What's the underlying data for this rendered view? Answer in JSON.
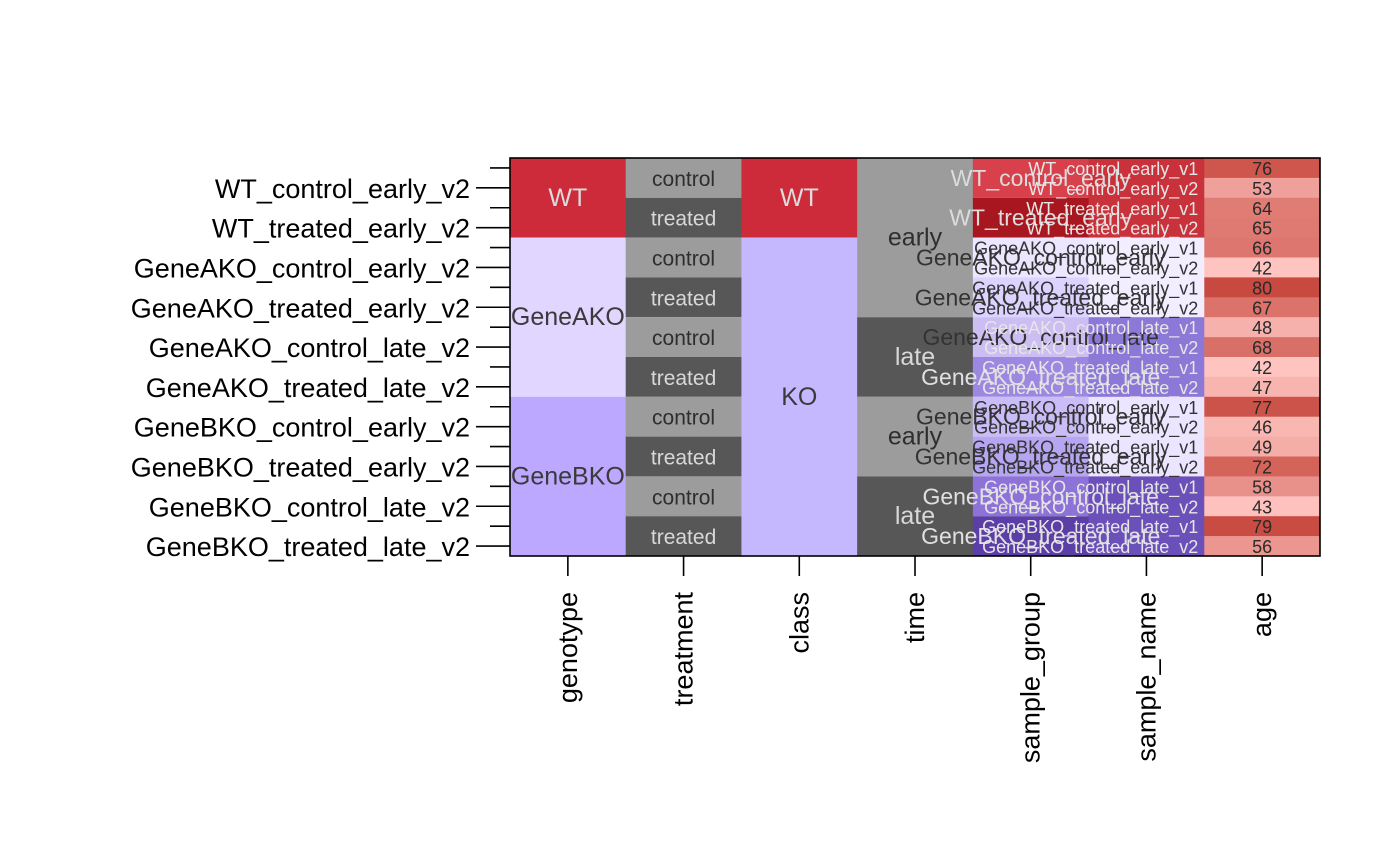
{
  "chart_data": {
    "type": "heatmap",
    "row_labels": [
      "WT_control_early_v2",
      "WT_treated_early_v2",
      "GeneAKO_control_early_v2",
      "GeneAKO_treated_early_v2",
      "GeneAKO_control_late_v2",
      "GeneAKO_treated_late_v2",
      "GeneBKO_control_early_v2",
      "GeneBKO_treated_early_v2",
      "GeneBKO_control_late_v2",
      "GeneBKO_treated_late_v2"
    ],
    "columns": [
      {
        "name": "genotype",
        "blocks": [
          {
            "label": "WT",
            "from": 0,
            "to": 4,
            "color": "#cd2b3a",
            "text_color": "#dcdcdc"
          },
          {
            "label": "GeneAKO",
            "from": 4,
            "to": 12,
            "color": "#e0d6ff",
            "text_color": "#3a3a3a"
          },
          {
            "label": "GeneBKO",
            "from": 12,
            "to": 20,
            "color": "#bca8ff",
            "text_color": "#3a3a3a"
          }
        ]
      },
      {
        "name": "treatment",
        "blocks": [
          {
            "label": "control",
            "from": 0,
            "to": 2,
            "color": "#9c9c9c",
            "text_color": "#2e2e2e"
          },
          {
            "label": "treated",
            "from": 2,
            "to": 4,
            "color": "#575757",
            "text_color": "#d8d8d8"
          },
          {
            "label": "control",
            "from": 4,
            "to": 6,
            "color": "#9c9c9c",
            "text_color": "#2e2e2e"
          },
          {
            "label": "treated",
            "from": 6,
            "to": 8,
            "color": "#575757",
            "text_color": "#d8d8d8"
          },
          {
            "label": "control",
            "from": 8,
            "to": 10,
            "color": "#9c9c9c",
            "text_color": "#2e2e2e"
          },
          {
            "label": "treated",
            "from": 10,
            "to": 12,
            "color": "#575757",
            "text_color": "#d8d8d8"
          },
          {
            "label": "control",
            "from": 12,
            "to": 14,
            "color": "#9c9c9c",
            "text_color": "#2e2e2e"
          },
          {
            "label": "treated",
            "from": 14,
            "to": 16,
            "color": "#575757",
            "text_color": "#d8d8d8"
          },
          {
            "label": "control",
            "from": 16,
            "to": 18,
            "color": "#9c9c9c",
            "text_color": "#2e2e2e"
          },
          {
            "label": "treated",
            "from": 18,
            "to": 20,
            "color": "#575757",
            "text_color": "#d8d8d8"
          }
        ]
      },
      {
        "name": "class",
        "blocks": [
          {
            "label": "WT",
            "from": 0,
            "to": 4,
            "color": "#cd2b3a",
            "text_color": "#dcdcdc"
          },
          {
            "label": "KO",
            "from": 4,
            "to": 20,
            "color": "#c6b8ff",
            "text_color": "#3a3a3a"
          }
        ]
      },
      {
        "name": "time",
        "blocks": [
          {
            "label": "early",
            "from": 0,
            "to": 8,
            "color": "#9c9c9c",
            "text_color": "#2e2e2e"
          },
          {
            "label": "late",
            "from": 8,
            "to": 12,
            "color": "#575757",
            "text_color": "#d8d8d8"
          },
          {
            "label": "early",
            "from": 12,
            "to": 16,
            "color": "#9c9c9c",
            "text_color": "#2e2e2e"
          },
          {
            "label": "late",
            "from": 16,
            "to": 20,
            "color": "#575757",
            "text_color": "#d8d8d8"
          }
        ]
      }
    ],
    "sample_group": {
      "name": "sample_group",
      "groups": [
        {
          "label": "WT_control_early",
          "color": "#d8404b",
          "text_color": "#dcdcdc"
        },
        {
          "label": "WT_treated_early",
          "color": "#a8161f",
          "text_color": "#dcdcdc"
        },
        {
          "label": "GeneAKO_control_early",
          "color": "#ece6ff",
          "text_color": "#333333"
        },
        {
          "label": "GeneAKO_treated_early",
          "color": "#ddd3ff",
          "text_color": "#333333"
        },
        {
          "label": "GeneAKO_control_late",
          "color": "#ccbdf2",
          "text_color": "#333333"
        },
        {
          "label": "GeneAKO_treated_late",
          "color": "#9c88e0",
          "text_color": "#e0e0e0"
        },
        {
          "label": "GeneBKO_control_early",
          "color": "#c9bcf7",
          "text_color": "#333333"
        },
        {
          "label": "GeneBKO_treated_early",
          "color": "#b6a5f0",
          "text_color": "#333333"
        },
        {
          "label": "GeneBKO_control_late",
          "color": "#8d72d8",
          "text_color": "#e0e0e0"
        },
        {
          "label": "GeneBKO_treated_late",
          "color": "#5c3fa6",
          "text_color": "#e0e0e0"
        }
      ]
    },
    "samples": [
      {
        "sample_name": "WT_control_early_v1",
        "age": 76
      },
      {
        "sample_name": "WT_control_early_v2",
        "age": 53
      },
      {
        "sample_name": "WT_treated_early_v1",
        "age": 64
      },
      {
        "sample_name": "WT_treated_early_v2",
        "age": 65
      },
      {
        "sample_name": "GeneAKO_control_early_v1",
        "age": 66
      },
      {
        "sample_name": "GeneAKO_control_early_v2",
        "age": 42
      },
      {
        "sample_name": "GeneAKO_treated_early_v1",
        "age": 80
      },
      {
        "sample_name": "GeneAKO_treated_early_v2",
        "age": 67
      },
      {
        "sample_name": "GeneAKO_control_late_v1",
        "age": 48
      },
      {
        "sample_name": "GeneAKO_control_late_v2",
        "age": 68
      },
      {
        "sample_name": "GeneAKO_treated_late_v1",
        "age": 42
      },
      {
        "sample_name": "GeneAKO_treated_late_v2",
        "age": 47
      },
      {
        "sample_name": "GeneBKO_control_early_v1",
        "age": 77
      },
      {
        "sample_name": "GeneBKO_control_early_v2",
        "age": 46
      },
      {
        "sample_name": "GeneBKO_treated_early_v1",
        "age": 49
      },
      {
        "sample_name": "GeneBKO_treated_early_v2",
        "age": 72
      },
      {
        "sample_name": "GeneBKO_control_late_v1",
        "age": 58
      },
      {
        "sample_name": "GeneBKO_control_late_v2",
        "age": 43
      },
      {
        "sample_name": "GeneBKO_treated_late_v1",
        "age": 79
      },
      {
        "sample_name": "GeneBKO_treated_late_v2",
        "age": 56
      }
    ],
    "sample_name_colors": {
      "WT": "#c9313b",
      "GeneAKO_early": "#f2eeff",
      "GeneAKO_late": "#8c78d6",
      "GeneBKO_early": "#ebe5ff",
      "GeneBKO_late": "#6a50b8"
    },
    "age_scale": {
      "min": 42,
      "max": 80,
      "low_color": "#ffc4c0",
      "high_color": "#c8493f"
    },
    "column_names": [
      "genotype",
      "treatment",
      "class",
      "time",
      "sample_group",
      "sample_name",
      "age"
    ],
    "grid": false,
    "legend": "none"
  }
}
